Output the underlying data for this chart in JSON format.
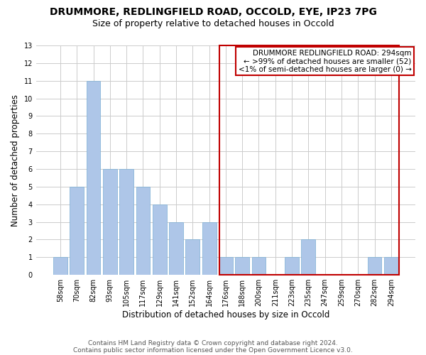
{
  "title": "DRUMMORE, REDLINGFIELD ROAD, OCCOLD, EYE, IP23 7PG",
  "subtitle": "Size of property relative to detached houses in Occold",
  "xlabel": "Distribution of detached houses by size in Occold",
  "ylabel": "Number of detached properties",
  "categories": [
    "58sqm",
    "70sqm",
    "82sqm",
    "93sqm",
    "105sqm",
    "117sqm",
    "129sqm",
    "141sqm",
    "152sqm",
    "164sqm",
    "176sqm",
    "188sqm",
    "200sqm",
    "211sqm",
    "223sqm",
    "235sqm",
    "247sqm",
    "259sqm",
    "270sqm",
    "282sqm",
    "294sqm"
  ],
  "values": [
    1,
    5,
    11,
    6,
    6,
    5,
    4,
    3,
    2,
    3,
    1,
    1,
    1,
    0,
    1,
    2,
    0,
    0,
    0,
    1,
    1
  ],
  "bar_color": "#aec6e8",
  "highlight_index": 20,
  "highlight_color": "#c00000",
  "ylim": [
    0,
    13
  ],
  "yticks": [
    0,
    1,
    2,
    3,
    4,
    5,
    6,
    7,
    8,
    9,
    10,
    11,
    12,
    13
  ],
  "grid_color": "#cccccc",
  "ann_line1": "DRUMMORE REDLINGFIELD ROAD: 294sqm",
  "ann_line2": "← >99% of detached houses are smaller (52)",
  "ann_line3": "<1% of semi-detached houses are larger (0) →",
  "annotation_box_color": "#c00000",
  "footer_line1": "Contains HM Land Registry data © Crown copyright and database right 2024.",
  "footer_line2": "Contains public sector information licensed under the Open Government Licence v3.0.",
  "title_fontsize": 10,
  "subtitle_fontsize": 9,
  "xlabel_fontsize": 8.5,
  "ylabel_fontsize": 8.5,
  "tick_fontsize": 7,
  "ann_fontsize": 7.5,
  "footer_fontsize": 6.5
}
